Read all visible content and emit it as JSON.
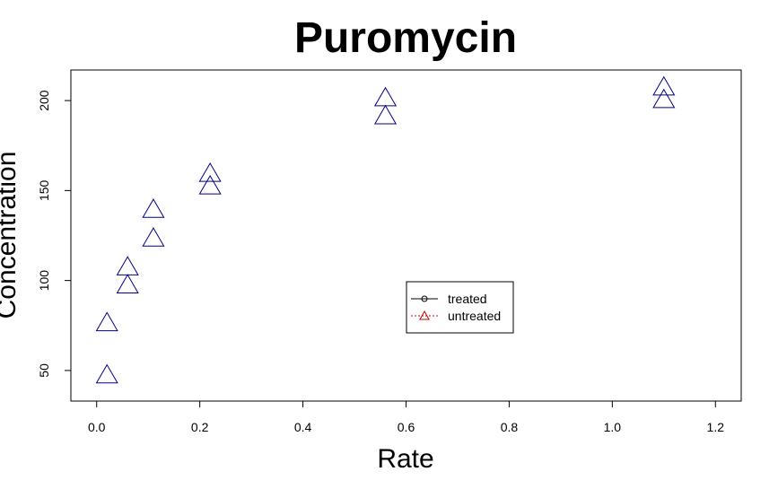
{
  "chart_data": {
    "type": "scatter",
    "title": "Puromycin",
    "xlabel": "Rate",
    "ylabel": "Concentration",
    "xlim": [
      -0.05,
      1.25
    ],
    "ylim": [
      33,
      217
    ],
    "x_ticks": [
      0.0,
      0.2,
      0.4,
      0.6,
      0.8,
      1.0,
      1.2
    ],
    "x_tick_labels": [
      "0.0",
      "0.2",
      "0.4",
      "0.6",
      "0.8",
      "1.0",
      "1.2"
    ],
    "y_ticks": [
      50,
      100,
      150,
      200
    ],
    "y_tick_labels": [
      "50",
      "100",
      "150",
      "200"
    ],
    "grid": false,
    "marker_color": "#00008b",
    "series": [
      {
        "x": [
          0.02,
          0.02,
          0.06,
          0.06,
          0.11,
          0.11,
          0.22,
          0.22,
          0.56,
          0.56,
          1.1,
          1.1
        ],
        "y": [
          76,
          47,
          97,
          107,
          123,
          139,
          159,
          152,
          191,
          201,
          207,
          200
        ]
      }
    ],
    "legend": {
      "position": "center-right",
      "entries": [
        {
          "label": "treated",
          "marker": "circle",
          "line": "solid",
          "color": "#000000"
        },
        {
          "label": "untreated",
          "marker": "triangle",
          "line": "dotted",
          "color": "#cc0000"
        }
      ]
    }
  }
}
